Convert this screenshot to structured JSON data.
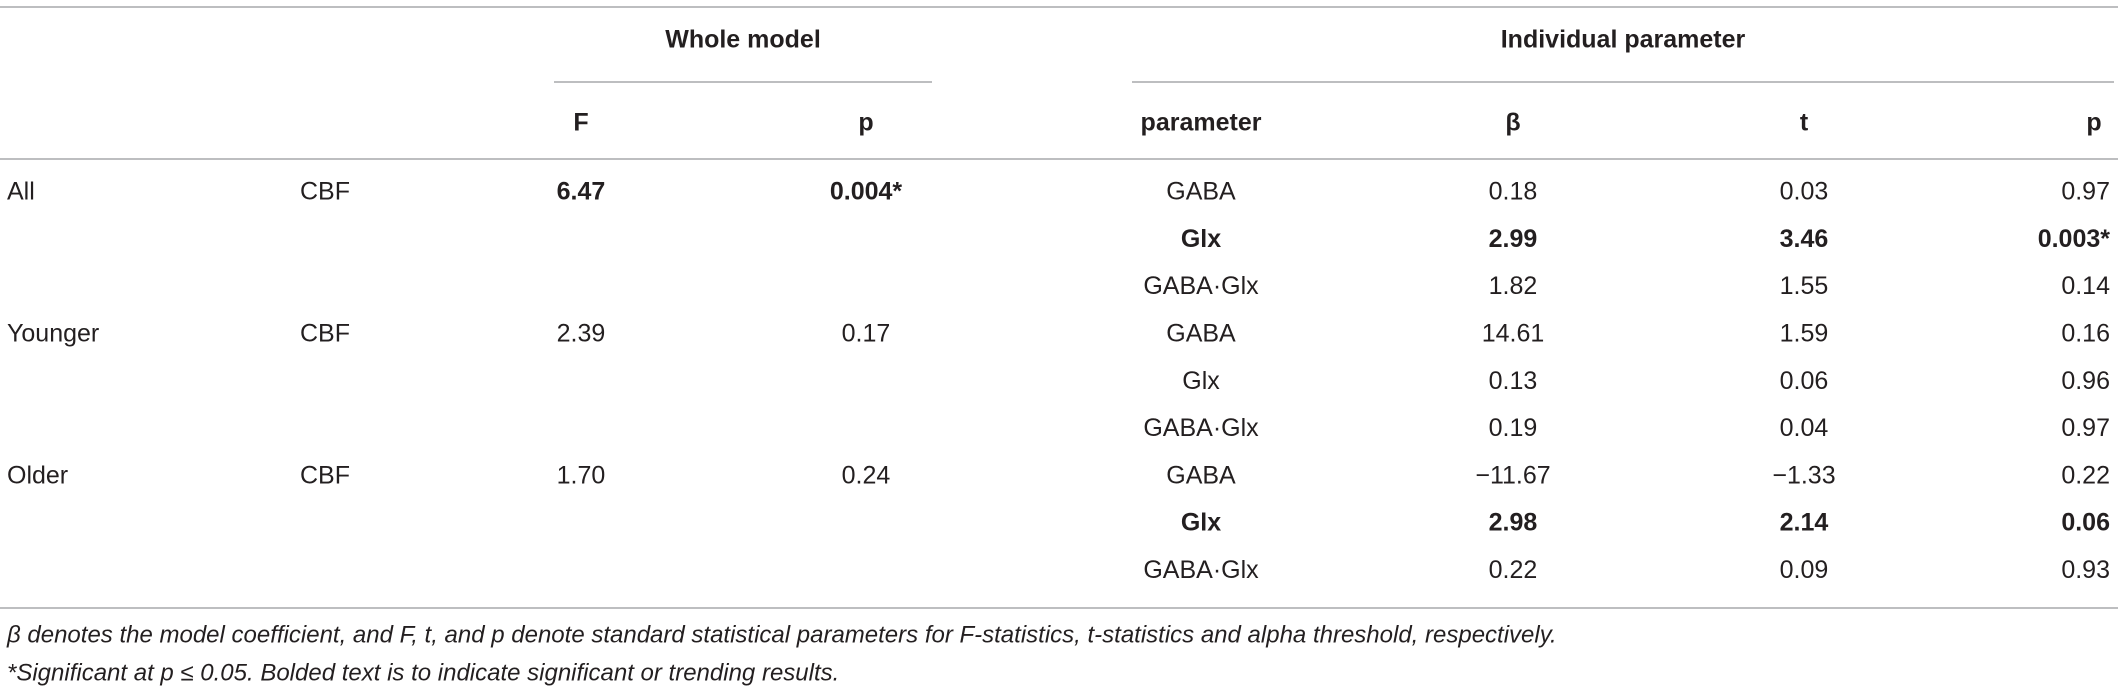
{
  "table": {
    "groups": [
      "Whole model",
      "Individual parameter"
    ],
    "columns": [
      null,
      null,
      "F",
      "p",
      "parameter",
      "β",
      "t",
      "p"
    ],
    "rows": [
      [
        "All",
        "CBF",
        "6.47",
        "0.004*",
        "GABA",
        "0.18",
        "0.03",
        "0.97"
      ],
      [
        null,
        null,
        null,
        null,
        "Glx",
        "2.99",
        "3.46",
        "0.003*"
      ],
      [
        null,
        null,
        null,
        null,
        "GABA·Glx",
        "1.82",
        "1.55",
        "0.14"
      ],
      [
        "Younger",
        "CBF",
        "2.39",
        "0.17",
        "GABA",
        "14.61",
        "1.59",
        "0.16"
      ],
      [
        null,
        null,
        null,
        null,
        "Glx",
        "0.13",
        "0.06",
        "0.96"
      ],
      [
        null,
        null,
        null,
        null,
        "GABA·Glx",
        "0.19",
        "0.04",
        "0.97"
      ],
      [
        "Older",
        "CBF",
        "1.70",
        "0.24",
        "GABA",
        "−11.67",
        "−1.33",
        "0.22"
      ],
      [
        null,
        null,
        null,
        null,
        "Glx",
        "2.98",
        "2.14",
        "0.06"
      ],
      [
        null,
        null,
        null,
        null,
        "GABA·Glx",
        "0.22",
        "0.09",
        "0.93"
      ]
    ],
    "bold_cells": [
      [
        0,
        2
      ],
      [
        0,
        3
      ],
      [
        1,
        4
      ],
      [
        1,
        5
      ],
      [
        1,
        6
      ],
      [
        1,
        7
      ],
      [
        7,
        4
      ],
      [
        7,
        5
      ],
      [
        7,
        6
      ],
      [
        7,
        7
      ]
    ],
    "footnotes": [
      "β denotes the model coefficient, and F, t, and p denote standard statistical parameters for F-statistics, t-statistics and alpha threshold, respectively.",
      "*Significant at p ≤ 0.05. Bolded text is to indicate significant or trending results."
    ]
  }
}
